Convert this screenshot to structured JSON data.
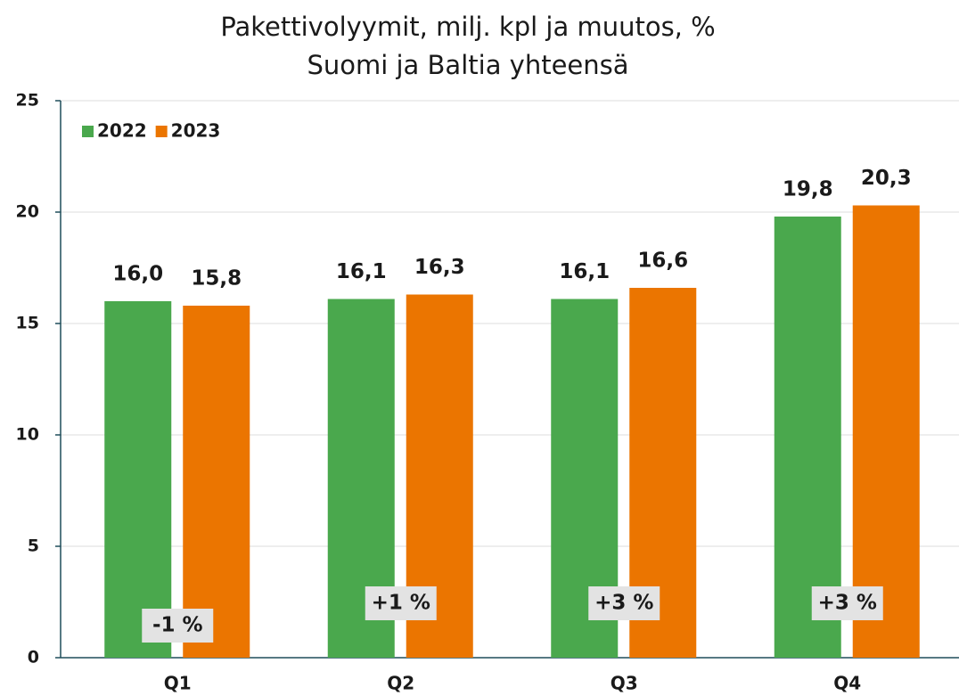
{
  "chart_data": {
    "type": "bar",
    "title": "Pakettivolyymit, milj. kpl ja muutos, %",
    "subtitle": "Suomi ja Baltia yhteensä",
    "categories": [
      "Q1",
      "Q2",
      "Q3",
      "Q4"
    ],
    "series": [
      {
        "name": "2022",
        "color": "#4aa84d",
        "values": [
          16.0,
          16.1,
          16.1,
          19.8
        ],
        "value_labels": [
          "16,0",
          "16,1",
          "16,1",
          "19,8"
        ]
      },
      {
        "name": "2023",
        "color": "#eb7500",
        "values": [
          15.8,
          16.3,
          16.6,
          20.3
        ],
        "value_labels": [
          "15,8",
          "16,3",
          "16,6",
          "20,3"
        ]
      }
    ],
    "annotations": [
      "-1 %",
      "+1 %",
      "+3 %",
      "+3 %"
    ],
    "ylim": [
      0,
      25
    ],
    "yticks": [
      0,
      5,
      10,
      15,
      20,
      25
    ],
    "grid": true,
    "legend": "top-left"
  }
}
